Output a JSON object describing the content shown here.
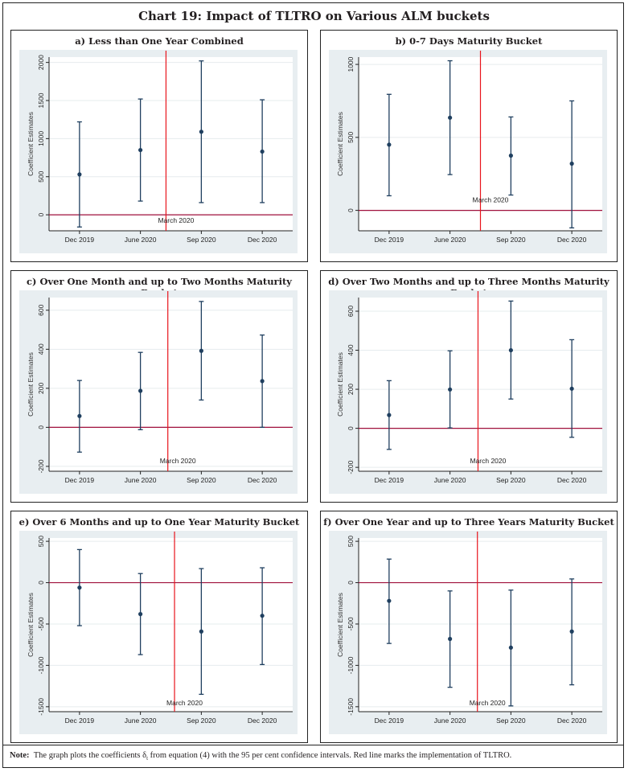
{
  "header": {
    "title": "Chart 19: Impact of TLTRO on Various ALM buckets"
  },
  "note": {
    "label": "Note:",
    "text": "The graph plots the coefficients δ",
    "subscript": "t",
    "text_after": " from equation (4) with the 95 per cent confidence intervals. Red line marks the implementation of TLTRO."
  },
  "colors": {
    "point": "#1f3f5f",
    "event_line": "#e8141c",
    "zero_line": "#a0103c",
    "plot_region_bg": "#e8eef1",
    "grid": "#e6ecee"
  },
  "chart_data": [
    {
      "type": "scatter",
      "title": "a) Less than One Year Combined",
      "ylabel": "Coefficient Estimates",
      "xlabel": "",
      "categories": [
        "Dec 2019",
        "June 2020",
        "Sep 2020",
        "Dec 2020"
      ],
      "values": [
        530,
        850,
        1090,
        830
      ],
      "ci_low": [
        -160,
        180,
        160,
        160
      ],
      "ci_high": [
        1220,
        1520,
        2020,
        1510
      ],
      "ylim": [
        -210,
        2070
      ],
      "yticks": [
        0,
        500,
        1000,
        1500,
        2000
      ],
      "event_line": {
        "label": "March 2020",
        "position": 1.42
      },
      "zero_line": 0,
      "grid": true
    },
    {
      "type": "scatter",
      "title": "b) 0-7 Days Maturity Bucket",
      "ylabel": "Coefficient Estimates",
      "xlabel": "",
      "categories": [
        "Dec 2019",
        "June 2020",
        "Sep 2020",
        "Dec 2020"
      ],
      "values": [
        450,
        635,
        375,
        320
      ],
      "ci_low": [
        100,
        245,
        105,
        -120
      ],
      "ci_high": [
        795,
        1025,
        640,
        750
      ],
      "ylim": [
        -140,
        1050
      ],
      "yticks": [
        0,
        500,
        1000
      ],
      "event_line": {
        "label": "March 2020",
        "position": 1.5
      },
      "zero_line": 0,
      "grid": true
    },
    {
      "type": "scatter",
      "title": "c) Over One Month and up to Two Months Maturity Bucket",
      "ylabel": "Coefficient Estimates",
      "xlabel": "",
      "categories": [
        "Dec 2019",
        "June 2020",
        "Sep 2020",
        "Dec 2020"
      ],
      "values": [
        58,
        187,
        392,
        237
      ],
      "ci_low": [
        -127,
        -12,
        140,
        0
      ],
      "ci_high": [
        240,
        384,
        645,
        473
      ],
      "ylim": [
        -225,
        665
      ],
      "yticks": [
        -200,
        0,
        200,
        400,
        600
      ],
      "event_line": {
        "label": "March 2020",
        "position": 1.45
      },
      "zero_line": 0,
      "grid": true
    },
    {
      "type": "scatter",
      "title": "d) Over Two Months and up to Three Months Maturity Bucket",
      "ylabel": "Coefficient Estimates",
      "xlabel": "",
      "categories": [
        "Dec 2019",
        "June 2020",
        "Sep 2020",
        "Dec 2020"
      ],
      "values": [
        68,
        199,
        400,
        203
      ],
      "ci_low": [
        -108,
        2,
        150,
        -46
      ],
      "ci_high": [
        244,
        397,
        652,
        454
      ],
      "ylim": [
        -220,
        670
      ],
      "yticks": [
        -200,
        0,
        200,
        400,
        600
      ],
      "event_line": {
        "label": "March 2020",
        "position": 1.46
      },
      "zero_line": 0,
      "grid": true
    },
    {
      "type": "scatter",
      "title": "e) Over 6 Months and up to One Year Maturity Bucket",
      "ylabel": "Coefficient Estimates",
      "xlabel": "",
      "categories": [
        "Dec 2019",
        "June 2020",
        "Sep 2020",
        "Dec 2020"
      ],
      "values": [
        -60,
        -380,
        -590,
        -400
      ],
      "ci_low": [
        -520,
        -870,
        -1350,
        -990
      ],
      "ci_high": [
        400,
        110,
        170,
        180
      ],
      "ylim": [
        -1560,
        540
      ],
      "yticks": [
        -1500,
        -1000,
        -500,
        0,
        500
      ],
      "event_line": {
        "label": "March 2020",
        "position": 1.56
      },
      "zero_line": 0,
      "grid": true
    },
    {
      "type": "scatter",
      "title": "f) Over One Year and up to Three Years Maturity Bucket",
      "ylabel": "Coefficient Estimates",
      "xlabel": "",
      "categories": [
        "Dec 2019",
        "June 2020",
        "Sep 2020",
        "Dec 2020"
      ],
      "values": [
        -220,
        -680,
        -785,
        -590
      ],
      "ci_low": [
        -735,
        -1265,
        -1490,
        -1235
      ],
      "ci_high": [
        285,
        -100,
        -90,
        45
      ],
      "ylim": [
        -1560,
        540
      ],
      "yticks": [
        -1500,
        -1000,
        -500,
        0,
        500
      ],
      "event_line": {
        "label": "March 2020",
        "position": 1.45
      },
      "zero_line": 0,
      "grid": true
    }
  ]
}
